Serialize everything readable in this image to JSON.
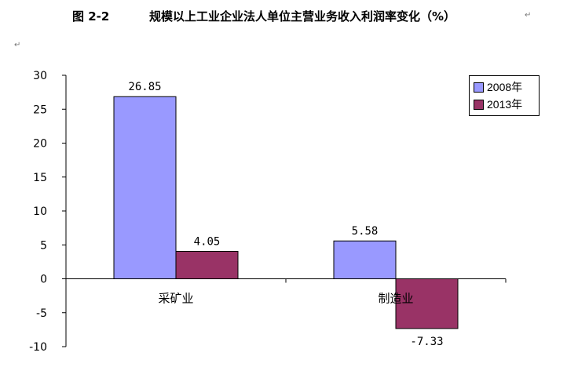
{
  "caption": {
    "figure_number": "图 2-2",
    "title": "规模以上工业企业法人单位主营业务收入利润率变化（%）",
    "paragraph_mark": "↵"
  },
  "chart_data": {
    "type": "bar",
    "categories": [
      "采矿业",
      "制造业"
    ],
    "series": [
      {
        "name": "2008年",
        "values": [
          26.85,
          5.58
        ],
        "color": "#9999ff",
        "labels": [
          "26.85",
          "5.58"
        ]
      },
      {
        "name": "2013年",
        "values": [
          4.05,
          -7.33
        ],
        "color": "#993366",
        "labels": [
          "4.05",
          "-7.33"
        ]
      }
    ],
    "yticks": [
      "30",
      "25",
      "20",
      "15",
      "10",
      "5",
      "0",
      "-5",
      "-10"
    ],
    "ylim": [
      -10,
      30
    ],
    "legend_position": "top-right",
    "grid": false
  }
}
